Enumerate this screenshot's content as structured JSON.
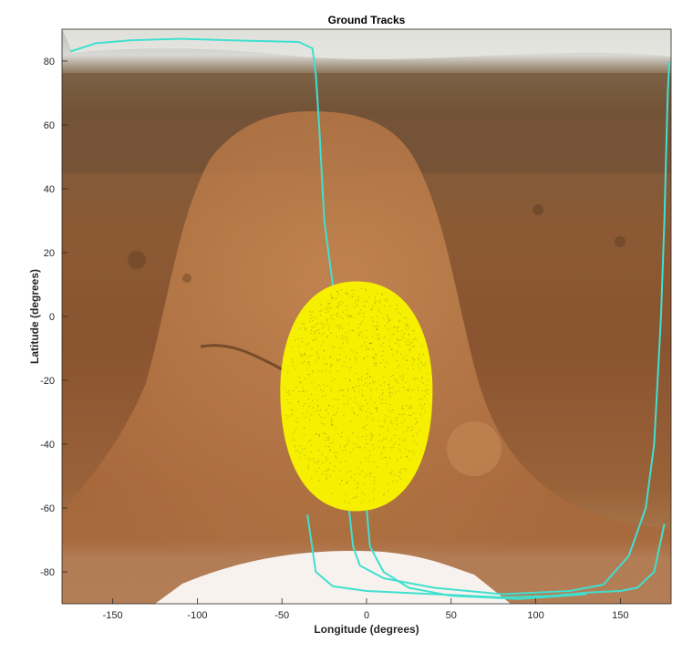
{
  "chart_data": {
    "type": "scatter",
    "title": "Ground Tracks",
    "xlabel": "Longitude (degrees)",
    "ylabel": "Latitude (degrees)",
    "xlim": [
      -180,
      180
    ],
    "ylim": [
      -90,
      90
    ],
    "xticks": [
      -150,
      -100,
      -50,
      0,
      50,
      100,
      150
    ],
    "yticks": [
      -80,
      -60,
      -40,
      -20,
      0,
      20,
      40,
      60,
      80
    ],
    "background": "Mars surface map (equirectangular)",
    "grid": false,
    "series": [
      {
        "type": "line",
        "color": "#3fe0d0",
        "points": [
          [
            -175,
            83
          ],
          [
            -160,
            85.6
          ],
          [
            -140,
            86.5
          ],
          [
            -110,
            87
          ],
          [
            -80,
            86.5
          ],
          [
            -40,
            86
          ],
          [
            -32,
            84
          ],
          [
            -30,
            76
          ],
          [
            -28,
            60
          ],
          [
            -25,
            30
          ],
          [
            -20,
            10
          ],
          [
            -16,
            -10
          ],
          [
            -14,
            -30
          ],
          [
            -12,
            -50
          ],
          [
            -10,
            -62
          ],
          [
            -8,
            -72
          ],
          [
            -4,
            -78
          ],
          [
            10,
            -82
          ],
          [
            40,
            -85
          ],
          [
            80,
            -87
          ],
          [
            120,
            -86
          ],
          [
            140,
            -84
          ],
          [
            155,
            -75
          ],
          [
            165,
            -60
          ],
          [
            170,
            -40
          ],
          [
            172,
            -20
          ],
          [
            174,
            0
          ],
          [
            176,
            30
          ],
          [
            178,
            70
          ],
          [
            179,
            80
          ]
        ]
      },
      {
        "type": "line",
        "color": "#3fe0d0",
        "points": [
          [
            -35,
            -62
          ],
          [
            -30,
            -80
          ],
          [
            -20,
            -84.5
          ],
          [
            0,
            -86
          ],
          [
            40,
            -87
          ],
          [
            80,
            -88
          ],
          [
            110,
            -87.5
          ],
          [
            130,
            -86.5
          ],
          [
            150,
            -86
          ],
          [
            160,
            -85
          ],
          [
            170,
            -80
          ],
          [
            176,
            -65
          ]
        ]
      },
      {
        "type": "line",
        "color": "#3fe0d0",
        "points": [
          [
            0,
            -60
          ],
          [
            2,
            -72
          ],
          [
            10,
            -80
          ],
          [
            25,
            -85
          ],
          [
            50,
            -87.5
          ],
          [
            90,
            -88.5
          ],
          [
            130,
            -87
          ]
        ]
      },
      {
        "type": "scatter",
        "color": "#f6f000",
        "region": {
          "center": [
            -6,
            -23
          ],
          "lon_radius": 45,
          "lat_north": 11,
          "lat_south": -61
        }
      }
    ]
  }
}
